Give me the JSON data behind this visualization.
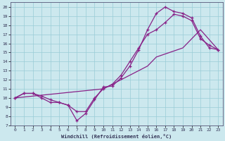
{
  "xlabel": "Windchill (Refroidissement éolien,°C)",
  "bg_color": "#cce8ee",
  "grid_color": "#99ccd6",
  "line_color": "#882288",
  "xlim": [
    -0.5,
    23.5
  ],
  "ylim": [
    7,
    20.5
  ],
  "xticks": [
    0,
    1,
    2,
    3,
    4,
    5,
    6,
    7,
    8,
    9,
    10,
    11,
    12,
    13,
    14,
    15,
    16,
    17,
    18,
    19,
    20,
    21,
    22,
    23
  ],
  "yticks": [
    7,
    8,
    9,
    10,
    11,
    12,
    13,
    14,
    15,
    16,
    17,
    18,
    19,
    20
  ],
  "line1_x": [
    0,
    1,
    2,
    3,
    4,
    5,
    6,
    7,
    8,
    9,
    10,
    11,
    12,
    13,
    14,
    15,
    16,
    17,
    18,
    19,
    20,
    21,
    22,
    23
  ],
  "line1_y": [
    10.0,
    10.5,
    10.5,
    10.0,
    9.5,
    9.5,
    9.2,
    7.5,
    8.3,
    9.8,
    11.2,
    11.3,
    12.2,
    13.5,
    15.3,
    17.5,
    19.3,
    20.0,
    19.5,
    19.3,
    18.8,
    16.8,
    15.5,
    15.3
  ],
  "line2_x": [
    0,
    1,
    2,
    3,
    4,
    5,
    6,
    7,
    8,
    9,
    10,
    11,
    12,
    13,
    14,
    15,
    16,
    17,
    18,
    19,
    20,
    21,
    22,
    23
  ],
  "line2_y": [
    10.0,
    10.5,
    10.5,
    10.2,
    9.8,
    9.5,
    9.2,
    8.5,
    8.5,
    10.0,
    11.0,
    11.5,
    12.5,
    14.0,
    15.5,
    17.0,
    17.5,
    18.3,
    19.2,
    19.0,
    18.5,
    16.5,
    15.8,
    15.3
  ],
  "line3_x": [
    0,
    10,
    15,
    16,
    19,
    20,
    21,
    23
  ],
  "line3_y": [
    10.0,
    11.0,
    13.5,
    14.5,
    15.5,
    16.5,
    17.5,
    15.3
  ]
}
